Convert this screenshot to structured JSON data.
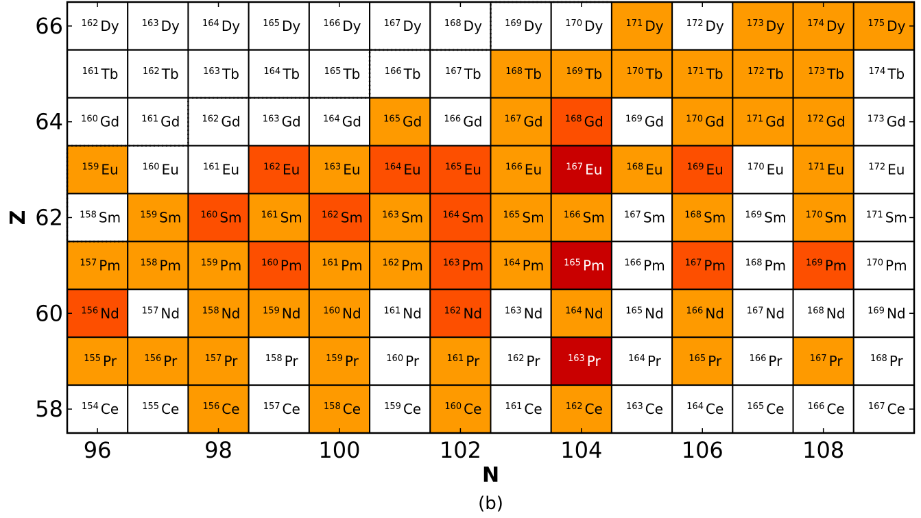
{
  "chart_data": {
    "type": "heatmap",
    "title": "",
    "xlabel": "N",
    "ylabel": "Z",
    "caption": "(b)",
    "xlim": [
      95.5,
      109.5
    ],
    "ylim": [
      57.5,
      66.5
    ],
    "x_ticks": [
      96,
      98,
      100,
      102,
      104,
      106,
      108
    ],
    "y_ticks": [
      58,
      60,
      62,
      64,
      66
    ],
    "colors": {
      "0": "#ffffff",
      "1": "#fe9a00",
      "2": "#fd4f00",
      "3": "#c90000"
    },
    "rows": [
      {
        "z": 66,
        "element": "Dy",
        "levels": [
          0,
          0,
          0,
          0,
          0,
          0,
          0,
          0,
          0,
          1,
          0,
          1,
          1,
          1
        ]
      },
      {
        "z": 65,
        "element": "Tb",
        "levels": [
          0,
          0,
          0,
          0,
          0,
          0,
          0,
          1,
          1,
          1,
          1,
          1,
          1,
          0
        ]
      },
      {
        "z": 64,
        "element": "Gd",
        "levels": [
          0,
          0,
          0,
          0,
          0,
          1,
          0,
          1,
          2,
          0,
          1,
          1,
          1,
          0
        ]
      },
      {
        "z": 63,
        "element": "Eu",
        "levels": [
          1,
          0,
          0,
          2,
          1,
          2,
          2,
          1,
          3,
          1,
          2,
          0,
          1,
          0
        ]
      },
      {
        "z": 62,
        "element": "Sm",
        "levels": [
          0,
          1,
          2,
          1,
          2,
          1,
          2,
          1,
          1,
          0,
          1,
          0,
          1,
          0
        ]
      },
      {
        "z": 61,
        "element": "Pm",
        "levels": [
          1,
          1,
          1,
          2,
          1,
          1,
          2,
          1,
          3,
          0,
          2,
          0,
          2,
          0
        ]
      },
      {
        "z": 60,
        "element": "Nd",
        "levels": [
          2,
          0,
          1,
          1,
          1,
          0,
          2,
          0,
          1,
          0,
          1,
          0,
          0,
          0
        ]
      },
      {
        "z": 59,
        "element": "Pr",
        "levels": [
          1,
          1,
          1,
          0,
          1,
          0,
          1,
          0,
          3,
          0,
          1,
          0,
          1,
          0
        ]
      },
      {
        "z": 58,
        "element": "Ce",
        "levels": [
          0,
          0,
          1,
          0,
          1,
          0,
          1,
          0,
          1,
          0,
          0,
          0,
          0,
          0
        ]
      }
    ],
    "dotted_boundary": [
      [
        96.5,
        61.5
      ],
      [
        95.5,
        61.5
      ],
      [
        95.5,
        63.5
      ],
      [
        97.5,
        63.5
      ],
      [
        97.5,
        64.5
      ],
      [
        100.5,
        64.5
      ],
      [
        100.5,
        65.5
      ],
      [
        102.5,
        65.5
      ],
      [
        102.5,
        66.5
      ],
      [
        104.5,
        66.5
      ]
    ]
  }
}
